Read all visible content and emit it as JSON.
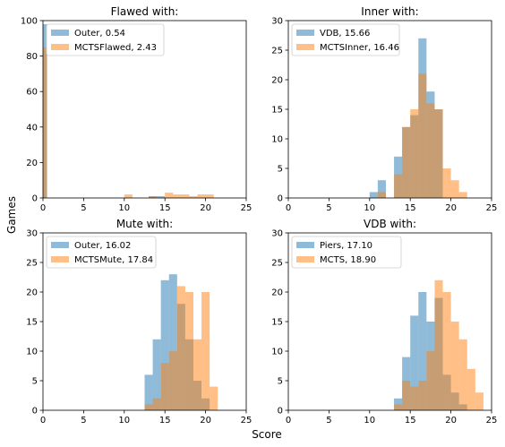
{
  "figure": {
    "xlabel": "Score",
    "ylabel": "Games",
    "colors": {
      "series_a": "#1f77b4",
      "series_b": "#ff7f0e"
    }
  },
  "chart_data": [
    {
      "type": "bar",
      "title": "Flawed with:",
      "xlim": [
        0,
        25
      ],
      "ylim": [
        0,
        100
      ],
      "xticks": [
        0,
        5,
        10,
        15,
        20,
        25
      ],
      "yticks": [
        0,
        20,
        40,
        60,
        80,
        100
      ],
      "legend": "top-left",
      "series": [
        {
          "name": "Outer, 0.54",
          "bins": [
            [
              0,
              0.5,
              98
            ],
            [
              13,
              14,
              1
            ],
            [
              14,
              15,
              1
            ]
          ]
        },
        {
          "name": "MCTSFlawed, 2.43",
          "bins": [
            [
              0,
              0.5,
              85
            ],
            [
              10,
              11,
              2
            ],
            [
              13,
              14,
              1
            ],
            [
              15,
              16,
              3
            ],
            [
              16,
              17,
              2
            ],
            [
              17,
              18,
              2
            ],
            [
              18,
              19,
              1
            ],
            [
              19,
              20,
              2
            ],
            [
              20,
              21,
              2
            ]
          ]
        }
      ]
    },
    {
      "type": "bar",
      "title": "Inner with:",
      "xlim": [
        0,
        25
      ],
      "ylim": [
        0,
        30
      ],
      "xticks": [
        0,
        5,
        10,
        15,
        20,
        25
      ],
      "yticks": [
        0,
        5,
        10,
        15,
        20,
        25,
        30
      ],
      "legend": "top-left",
      "series": [
        {
          "name": "VDB, 15.66",
          "bins": [
            [
              10,
              11,
              1
            ],
            [
              11,
              12,
              3
            ],
            [
              12,
              13,
              0
            ],
            [
              13,
              14,
              7
            ],
            [
              14,
              15,
              12
            ],
            [
              15,
              16,
              14
            ],
            [
              16,
              17,
              27
            ],
            [
              17,
              18,
              18
            ],
            [
              18,
              19,
              15
            ],
            [
              19,
              20,
              0
            ]
          ]
        },
        {
          "name": "MCTSInner, 16.46",
          "bins": [
            [
              11,
              12,
              1
            ],
            [
              12,
              13,
              0
            ],
            [
              13,
              14,
              4
            ],
            [
              14,
              15,
              12
            ],
            [
              15,
              16,
              15
            ],
            [
              16,
              17,
              21
            ],
            [
              17,
              18,
              16
            ],
            [
              18,
              19,
              15
            ],
            [
              19,
              20,
              5
            ],
            [
              20,
              21,
              3
            ],
            [
              21,
              22,
              1
            ]
          ]
        }
      ]
    },
    {
      "type": "bar",
      "title": "Mute with:",
      "xlim": [
        0,
        25
      ],
      "ylim": [
        0,
        30
      ],
      "xticks": [
        0,
        5,
        10,
        15,
        20,
        25
      ],
      "yticks": [
        0,
        5,
        10,
        15,
        20,
        25,
        30
      ],
      "legend": "top-left",
      "series": [
        {
          "name": "Outer, 16.02",
          "bins": [
            [
              12.5,
              13.5,
              6
            ],
            [
              13.5,
              14.5,
              12
            ],
            [
              14.5,
              15.5,
              22
            ],
            [
              15.5,
              16.5,
              23
            ],
            [
              16.5,
              17.5,
              18
            ],
            [
              17.5,
              18.5,
              12
            ],
            [
              18.5,
              19.5,
              5
            ],
            [
              19.5,
              20.5,
              2
            ]
          ]
        },
        {
          "name": "MCTSMute, 17.84",
          "bins": [
            [
              12.5,
              13.5,
              1
            ],
            [
              13.5,
              14.5,
              2
            ],
            [
              14.5,
              15.5,
              8
            ],
            [
              15.5,
              16.5,
              10
            ],
            [
              16.5,
              17.5,
              21
            ],
            [
              17.5,
              18.5,
              20
            ],
            [
              18.5,
              19.5,
              12
            ],
            [
              19.5,
              20.5,
              20
            ],
            [
              20.5,
              21.5,
              4
            ]
          ]
        }
      ]
    },
    {
      "type": "bar",
      "title": "VDB with:",
      "xlim": [
        0,
        25
      ],
      "ylim": [
        0,
        30
      ],
      "xticks": [
        0,
        5,
        10,
        15,
        20,
        25
      ],
      "yticks": [
        0,
        5,
        10,
        15,
        20,
        25,
        30
      ],
      "legend": "top-left",
      "series": [
        {
          "name": "Piers, 17.10",
          "bins": [
            [
              13,
              14,
              2
            ],
            [
              14,
              15,
              9
            ],
            [
              15,
              16,
              16
            ],
            [
              16,
              17,
              20
            ],
            [
              17,
              18,
              15
            ],
            [
              18,
              19,
              19
            ],
            [
              19,
              20,
              6
            ],
            [
              20,
              21,
              3
            ],
            [
              21,
              22,
              1
            ]
          ]
        },
        {
          "name": "MCTS, 18.90",
          "bins": [
            [
              13,
              14,
              1
            ],
            [
              14,
              15,
              5
            ],
            [
              15,
              16,
              4
            ],
            [
              16,
              17,
              5
            ],
            [
              17,
              18,
              10
            ],
            [
              18,
              19,
              22
            ],
            [
              19,
              20,
              20
            ],
            [
              20,
              21,
              15
            ],
            [
              21,
              22,
              12
            ],
            [
              22,
              23,
              7
            ],
            [
              23,
              24,
              3
            ]
          ]
        }
      ]
    }
  ]
}
